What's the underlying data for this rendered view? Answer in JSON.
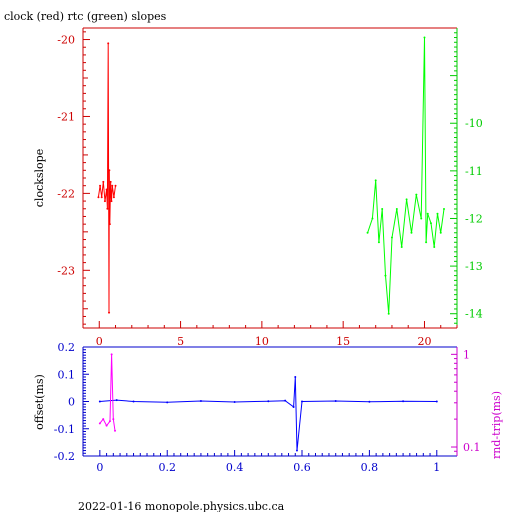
{
  "title": "clock (red) rtc (green) slopes",
  "footer": "2022-01-16 monopole.physics.ubc.ca",
  "colors": {
    "clock": "#ff0000",
    "rtc": "#00ff00",
    "offset": "#0000ff",
    "rndtrip": "#ff00ff",
    "axis_top_left": "#cc0000",
    "axis_top_right": "#00cc00",
    "axis_bottom_left": "#0000cc",
    "axis_bottom_right": "#cc00cc"
  },
  "chart_data": [
    {
      "type": "line",
      "title": "clock (red) rtc (green) slopes",
      "ylabel": "clockslope",
      "xlim": [
        -1.0,
        22.0
      ],
      "ylim": [
        -23.75,
        -19.85
      ],
      "y2lim": [
        -14.3,
        -8.0
      ],
      "xticks": [
        "0",
        "5",
        "10",
        "15",
        "20"
      ],
      "yticks": [
        "-20",
        "-21",
        "-22",
        "-23"
      ],
      "y2ticks": [
        "-10",
        "-11",
        "-12",
        "-13",
        "-14"
      ],
      "grid": false,
      "series": [
        {
          "name": "clock",
          "axis": "left",
          "x": [
            -0.05,
            0.05,
            0.15,
            0.25,
            0.35,
            0.45,
            0.5,
            0.55,
            0.6,
            0.62,
            0.65,
            0.7,
            0.75,
            0.8,
            0.9,
            1.0
          ],
          "y": [
            -22.05,
            -21.9,
            -22.05,
            -21.85,
            -22.1,
            -21.95,
            -22.2,
            -20.05,
            -23.55,
            -21.7,
            -22.4,
            -21.85,
            -22.1,
            -21.9,
            -22.05,
            -21.9
          ]
        },
        {
          "name": "rtc",
          "axis": "right",
          "x": [
            16.5,
            16.8,
            17.0,
            17.2,
            17.4,
            17.6,
            17.8,
            18.0,
            18.3,
            18.6,
            18.9,
            19.2,
            19.5,
            19.8,
            20.0,
            20.1,
            20.2,
            20.4,
            20.6,
            20.8,
            21.0,
            21.2
          ],
          "y": [
            -12.3,
            -12.0,
            -11.2,
            -12.5,
            -11.8,
            -13.2,
            -14.0,
            -12.4,
            -11.8,
            -12.6,
            -11.6,
            -12.3,
            -11.5,
            -12.0,
            -8.2,
            -12.5,
            -11.9,
            -12.1,
            -12.6,
            -11.9,
            -12.3,
            -11.8
          ]
        }
      ]
    },
    {
      "type": "scatter",
      "ylabel": "offset(ms)",
      "y2label": "rnd-trip(ms)",
      "xlim": [
        -0.05,
        1.06
      ],
      "ylim": [
        -0.2,
        0.2
      ],
      "y2lim": [
        0.08,
        1.2
      ],
      "y2scale": "log",
      "xticks": [
        "0",
        "0.2",
        "0.4",
        "0.6",
        "0.8",
        "1"
      ],
      "yticks": [
        "0.2",
        "0.1",
        "0",
        "-0.1",
        "-0.2"
      ],
      "y2ticks": [
        "1",
        "0.1"
      ],
      "grid": false,
      "series": [
        {
          "name": "offset",
          "axis": "left",
          "x": [
            0.0,
            0.05,
            0.1,
            0.2,
            0.3,
            0.4,
            0.5,
            0.55,
            0.575,
            0.58,
            0.585,
            0.6,
            0.7,
            0.8,
            0.9,
            1.0
          ],
          "y": [
            0.0,
            0.005,
            0.0,
            -0.003,
            0.002,
            -0.002,
            0.001,
            0.003,
            -0.02,
            0.09,
            -0.18,
            0.0,
            0.002,
            -0.001,
            0.001,
            0.0
          ]
        },
        {
          "name": "rnd-trip",
          "axis": "right",
          "x": [
            0.0,
            0.01,
            0.02,
            0.03,
            0.035,
            0.04,
            0.045
          ],
          "y": [
            0.18,
            0.2,
            0.17,
            0.19,
            1.0,
            0.2,
            0.15
          ]
        }
      ]
    }
  ]
}
